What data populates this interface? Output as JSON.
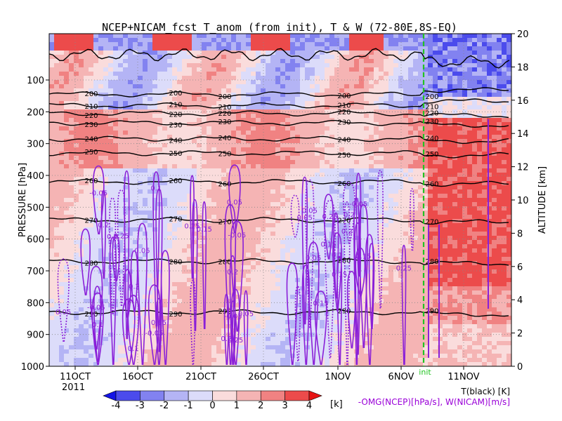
{
  "chart_data": {
    "type": "heatmap",
    "title": "NCEP+NICAM_fcst T_anom (from init), T & W  (72-80E,8S-EQ)",
    "ylabel_left": "PRESSURE [hPa]",
    "ylabel_right": "ALTITUDE [km]",
    "x_tick_labels": [
      "11OCT",
      "16OCT",
      "21OCT",
      "26OCT",
      "1NOV",
      "6NOV",
      "11NOV"
    ],
    "x_year_label": "2011",
    "init_label": "init",
    "pressure_ticks": [
      "100",
      "200",
      "300",
      "400",
      "500",
      "600",
      "700",
      "800",
      "900",
      "1000"
    ],
    "pressure_values": [
      100,
      200,
      300,
      400,
      500,
      600,
      700,
      800,
      900,
      1000
    ],
    "altitude_ticks": [
      0,
      2,
      4,
      6,
      8,
      10,
      12,
      14,
      16,
      18,
      20
    ],
    "colorbar": {
      "levels": [
        "-4",
        "-3",
        "-2",
        "-1",
        "0",
        "1",
        "2",
        "3",
        "4"
      ],
      "unit": "[k]",
      "colors": [
        "#1414e6",
        "#4b4bec",
        "#8282f0",
        "#b4b4f5",
        "#dcdcfa",
        "#fadcdc",
        "#f5b4b4",
        "#f08282",
        "#ec4b4b",
        "#e61414"
      ]
    },
    "legend_lines": [
      "T(black) [K]",
      "-OMG(NCEP)[hPa/s], W(NICAM)[m/s]"
    ],
    "temperature_contours": [
      {
        "value": "200",
        "pressure": 145
      },
      {
        "value": "210",
        "pressure": 180
      },
      {
        "value": "220",
        "pressure": 205
      },
      {
        "value": "230",
        "pressure": 235
      },
      {
        "value": "240",
        "pressure": 285
      },
      {
        "value": "250",
        "pressure": 330
      },
      {
        "value": "260",
        "pressure": 420
      },
      {
        "value": "270",
        "pressure": 540
      },
      {
        "value": "280",
        "pressure": 670
      },
      {
        "value": "290",
        "pressure": 830
      }
    ],
    "omega_labels": [
      "0.05",
      "0.1",
      "0.15",
      "0.2",
      "0.25",
      "-0.05"
    ]
  }
}
